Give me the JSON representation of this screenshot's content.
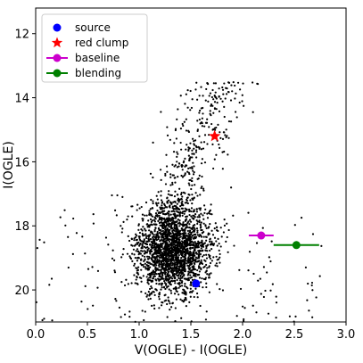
{
  "chart_data": {
    "type": "scatter",
    "xlabel": "V(OGLE) - I(OGLE)",
    "ylabel": "I(OGLE)",
    "xlim": [
      0.0,
      3.0
    ],
    "ylim": [
      21.0,
      11.2
    ],
    "y_inverted": true,
    "xticks": [
      "0.0",
      "0.5",
      "1.0",
      "1.5",
      "2.0",
      "2.5",
      "3.0"
    ],
    "yticks": [
      "12",
      "14",
      "16",
      "18",
      "20"
    ],
    "legend_position": "upper-left",
    "grid": false,
    "field_stars": {
      "count": 2600,
      "color": "#000000",
      "clump_center": [
        1.33,
        18.75
      ],
      "clump_spread": [
        0.17,
        0.7
      ],
      "red_giant_branch_spread": 0.08,
      "note_color": "black dots"
    },
    "series": [
      {
        "name": "source",
        "marker": "circle",
        "color": "#0000ff",
        "x": 1.55,
        "y": 19.8
      },
      {
        "name": "red clump",
        "marker": "star",
        "color": "#ff0000",
        "x": 1.73,
        "y": 15.2
      },
      {
        "name": "baseline",
        "marker": "circle-errorbar",
        "color": "#cc00cc",
        "x": 2.18,
        "y": 18.3,
        "xerr": 0.12
      },
      {
        "name": "blending",
        "marker": "circle-errorbar",
        "color": "#008000",
        "x": 2.52,
        "y": 18.6,
        "xerr": 0.22
      }
    ]
  }
}
